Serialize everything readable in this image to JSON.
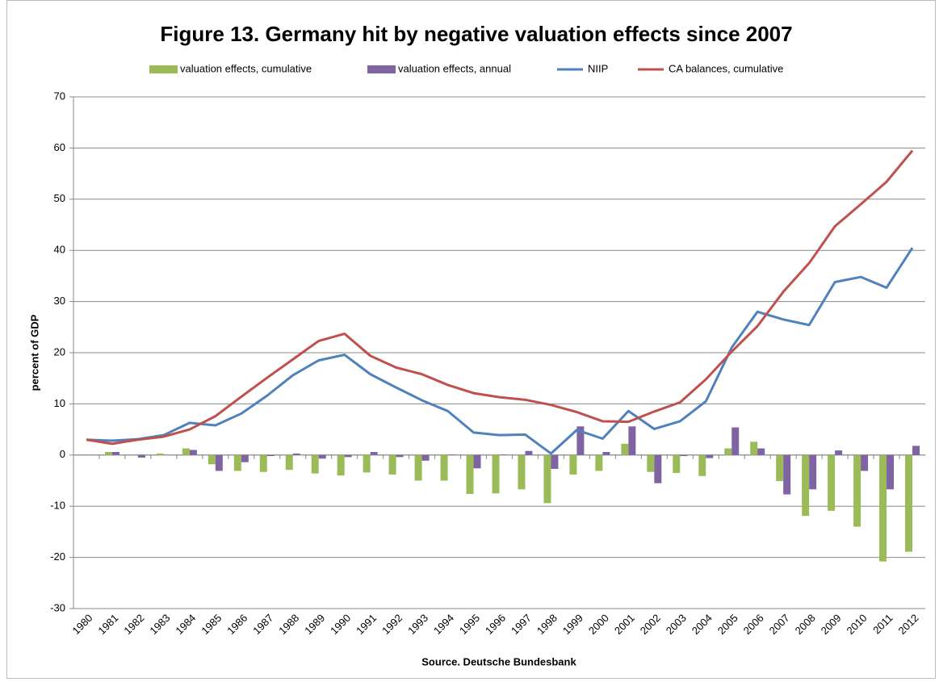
{
  "chart_data": {
    "type": "bar",
    "title": "Figure 13. Germany hit by negative valuation effects since 2007",
    "y_label": "percent of GDP",
    "x_label": "Source. Deutsche Bundesbank",
    "categories": [
      "1980",
      "1981",
      "1982",
      "1983",
      "1984",
      "1985",
      "1986",
      "1987",
      "1988",
      "1989",
      "1990",
      "1991",
      "1992",
      "1993",
      "1994",
      "1995",
      "1996",
      "1997",
      "1998",
      "1999",
      "2000",
      "2001",
      "2002",
      "2003",
      "2004",
      "2005",
      "2006",
      "2007",
      "2008",
      "2009",
      "2010",
      "2011",
      "2012"
    ],
    "series": [
      {
        "name": "valuation effects, cumulative",
        "type": "bar",
        "color": "#9bbb59",
        "values": [
          0,
          0.6,
          0,
          0.3,
          1.3,
          -1.8,
          -3.1,
          -3.3,
          -2.9,
          -3.6,
          -4,
          -3.4,
          -3.8,
          -5,
          -5,
          -7.6,
          -7.5,
          -6.7,
          -9.4,
          -3.8,
          -3.1,
          2.2,
          -3.3,
          -3.5,
          -4.1,
          1.3,
          2.6,
          -5.1,
          -11.9,
          -10.9,
          -14,
          -20.8,
          -18.9
        ]
      },
      {
        "name": "valuation effects, annual",
        "type": "bar",
        "color": "#8064a2",
        "values": [
          0,
          0.6,
          -0.5,
          0,
          1,
          -3.1,
          -1.4,
          -0.2,
          0.3,
          -0.7,
          -0.4,
          0.6,
          -0.4,
          -1.1,
          0.1,
          -2.6,
          0.1,
          0.8,
          -2.7,
          5.6,
          0.6,
          5.6,
          -5.5,
          -0.2,
          -0.6,
          5.4,
          1.3,
          -7.7,
          -6.7,
          0.9,
          -3.1,
          -6.7,
          1.8
        ]
      },
      {
        "name": "NIIP",
        "type": "line",
        "color": "#4f81bd",
        "values": [
          3,
          2.8,
          3.1,
          3.9,
          6.3,
          5.8,
          8.1,
          11.6,
          15.6,
          18.5,
          19.6,
          15.8,
          13.2,
          10.7,
          8.6,
          4.4,
          3.9,
          4,
          0.3,
          4.9,
          3.2,
          8.6,
          5.1,
          6.6,
          10.5,
          21,
          28,
          26.5,
          25.4,
          33.8,
          34.8,
          32.7,
          40.5
        ]
      },
      {
        "name": "CA balances, cumulative",
        "type": "line",
        "color": "#c0504d",
        "values": [
          3,
          2.2,
          3,
          3.6,
          5,
          7.6,
          11.4,
          15.1,
          18.7,
          22.3,
          23.7,
          19.4,
          17.1,
          15.8,
          13.7,
          12.1,
          11.3,
          10.8,
          9.8,
          8.4,
          6.6,
          6.5,
          8.5,
          10.3,
          14.8,
          20.2,
          25.2,
          31.9,
          37.5,
          44.7,
          49,
          53.4,
          59.5
        ]
      }
    ],
    "ylim": [
      -30,
      70
    ],
    "yticks": [
      -30,
      -20,
      -10,
      0,
      10,
      20,
      30,
      40,
      50,
      60,
      70
    ],
    "grid": true,
    "legend": "top"
  }
}
